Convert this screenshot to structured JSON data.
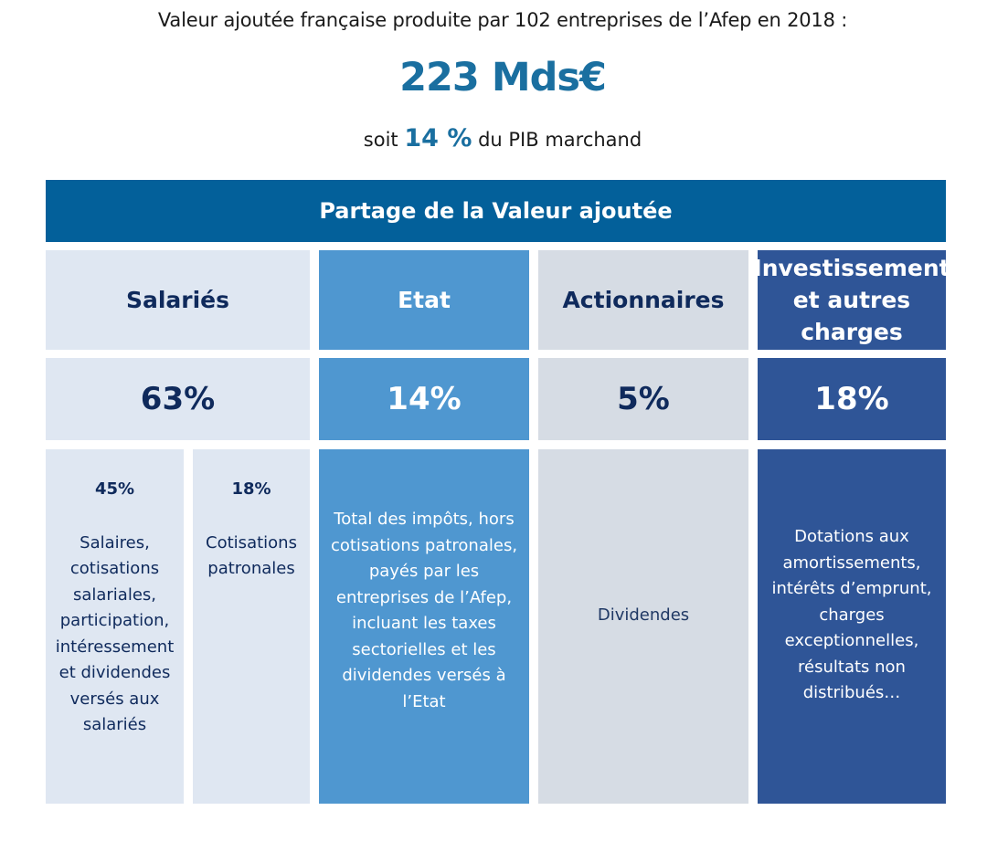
{
  "header": {
    "title": "Valeur ajoutée française produite par 102 entreprises de l’Afep en 2018 :",
    "total_value": "223 Mds€",
    "share_prefix": "soit",
    "share_value": "14 %",
    "share_suffix": "du PIB marchand"
  },
  "table": {
    "title": "Partage de la Valeur ajoutée",
    "columns": [
      {
        "label": "Salariés",
        "percent": "63%",
        "sub_items": [
          {
            "percent": "45%",
            "description": "Salaires, cotisations salariales, participation, intéressement et dividendes versés aux salariés"
          },
          {
            "percent": "18%",
            "description": "Cotisations patronales"
          }
        ]
      },
      {
        "label": "Etat",
        "percent": "14%",
        "description": "Total des impôts, hors cotisations patronales, payés par les entreprises de l’Afep, incluant les taxes sectorielles et les dividendes versés à l’Etat"
      },
      {
        "label": "Actionnaires",
        "percent": "5%",
        "description": "Dividendes"
      },
      {
        "label": "Investissement et autres charges",
        "percent": "18%",
        "description": "Dotations aux amortissements, intérêts d’emprunt, charges exceptionnelles, résultats non distribués…"
      }
    ]
  },
  "colors": {
    "header_band": "#03609A",
    "accent_text": "#1A6FA0",
    "salaries": "#DFE7F2",
    "etat": "#4F97D0",
    "actionnaires": "#D6DCE4",
    "investissement": "#2F5597",
    "navy_text": "#0F2A5C"
  }
}
